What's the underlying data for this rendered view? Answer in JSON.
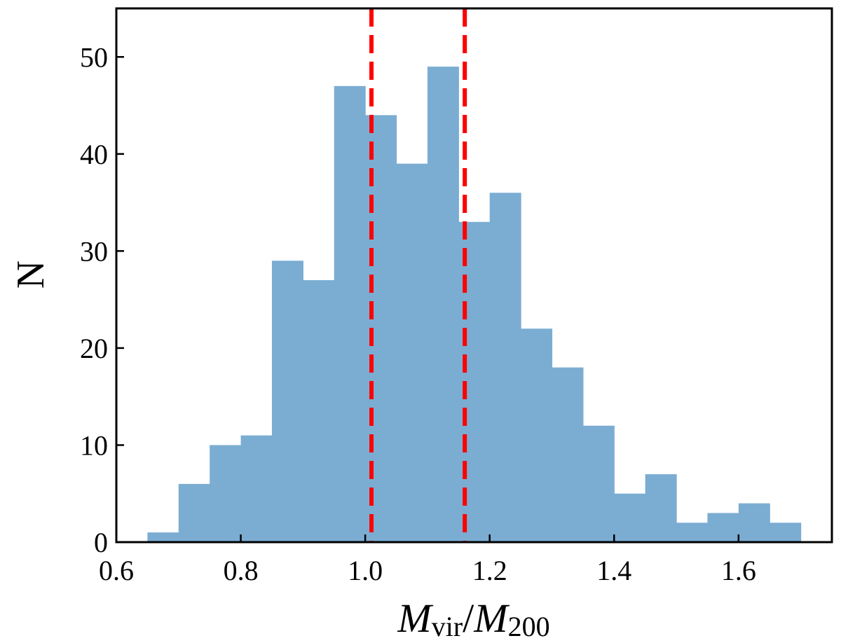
{
  "chart_data": {
    "type": "bar",
    "title": "",
    "xlabel": {
      "main": "M",
      "sub1": "vir",
      "slash": "/",
      "main2": "M",
      "sub2": "200"
    },
    "ylabel": "N",
    "xlim": [
      0.6,
      1.75
    ],
    "ylim": [
      0,
      55
    ],
    "grid": false,
    "bins": [
      {
        "x0": 0.65,
        "x1": 0.7,
        "count": 1
      },
      {
        "x0": 0.7,
        "x1": 0.75,
        "count": 6
      },
      {
        "x0": 0.75,
        "x1": 0.8,
        "count": 10
      },
      {
        "x0": 0.8,
        "x1": 0.85,
        "count": 11
      },
      {
        "x0": 0.85,
        "x1": 0.9,
        "count": 29
      },
      {
        "x0": 0.9,
        "x1": 0.95,
        "count": 27
      },
      {
        "x0": 0.95,
        "x1": 1.0,
        "count": 47
      },
      {
        "x0": 1.0,
        "x1": 1.05,
        "count": 44
      },
      {
        "x0": 1.05,
        "x1": 1.1,
        "count": 39
      },
      {
        "x0": 1.1,
        "x1": 1.15,
        "count": 49
      },
      {
        "x0": 1.15,
        "x1": 1.2,
        "count": 33
      },
      {
        "x0": 1.2,
        "x1": 1.25,
        "count": 36
      },
      {
        "x0": 1.25,
        "x1": 1.3,
        "count": 22
      },
      {
        "x0": 1.3,
        "x1": 1.35,
        "count": 18
      },
      {
        "x0": 1.35,
        "x1": 1.4,
        "count": 12
      },
      {
        "x0": 1.4,
        "x1": 1.45,
        "count": 5
      },
      {
        "x0": 1.45,
        "x1": 1.5,
        "count": 7
      },
      {
        "x0": 1.5,
        "x1": 1.55,
        "count": 2
      },
      {
        "x0": 1.55,
        "x1": 1.6,
        "count": 3
      },
      {
        "x0": 1.6,
        "x1": 1.65,
        "count": 4
      },
      {
        "x0": 1.65,
        "x1": 1.7,
        "count": 2
      }
    ],
    "vlines": [
      {
        "x": 1.01,
        "color": "#ff0000",
        "style": "dashed"
      },
      {
        "x": 1.16,
        "color": "#ff0000",
        "style": "dashed"
      }
    ],
    "xticks": [
      0.6,
      0.8,
      1.0,
      1.2,
      1.4,
      1.6
    ],
    "xtick_labels": [
      "0.6",
      "0.8",
      "1.0",
      "1.2",
      "1.4",
      "1.6"
    ],
    "yticks": [
      0,
      10,
      20,
      30,
      40,
      50
    ],
    "ytick_labels": [
      "0",
      "10",
      "20",
      "30",
      "40",
      "50"
    ],
    "bar_color": "#7badd3"
  }
}
